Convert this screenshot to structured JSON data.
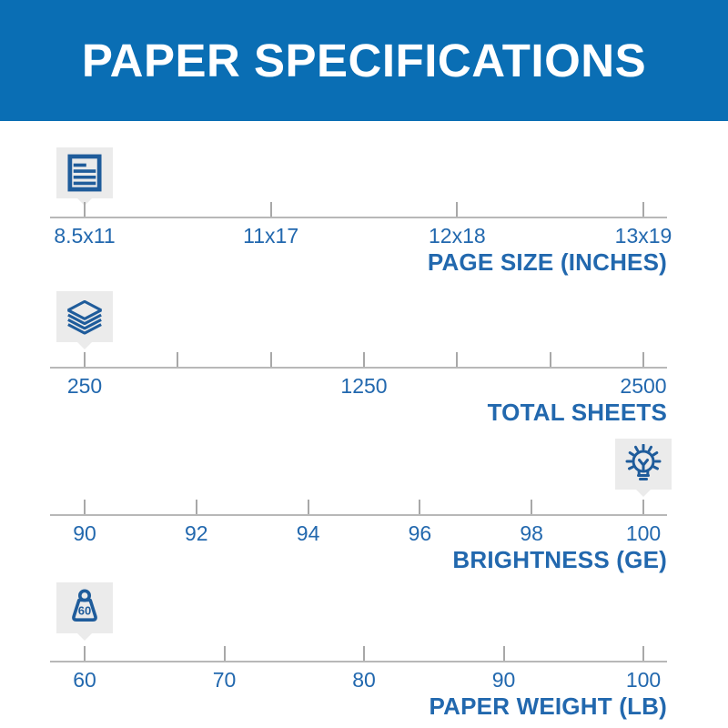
{
  "header": {
    "title": "PAPER SPECIFICATIONS"
  },
  "colors": {
    "banner_blue": "#0a6eb4",
    "text_blue": "#2268ae",
    "icon_blue": "#1f5c9b",
    "badge_gray": "#ebebeb",
    "axis_line_gray": "#b8b8b8",
    "tick_gray": "#a8a8a8",
    "background": "#ffffff"
  },
  "chart_data": {
    "type": "scale",
    "title": "PAPER SPECIFICATIONS",
    "description": "Four horizontal specification scales; a gray marker badge with an icon points to this paper's value on each scale",
    "scales": [
      {
        "title": "PAGE SIZE (INCHES)",
        "tick_labels": [
          "8.5x11",
          "11x17",
          "12x18",
          "13x19"
        ],
        "selected_index": 0,
        "selected_value": "8.5x11",
        "icon": "document-icon"
      },
      {
        "title": "TOTAL SHEETS",
        "tick_labels": [
          "250",
          "",
          "",
          "1250",
          "",
          "",
          "2500"
        ],
        "selected_index": 0,
        "selected_value": "250",
        "icon": "paper-stack-icon"
      },
      {
        "title": "BRIGHTNESS (GE)",
        "tick_labels": [
          "90",
          "92",
          "94",
          "96",
          "98",
          "100"
        ],
        "selected_index": 5,
        "selected_value": "100",
        "icon": "lightbulb-icon"
      },
      {
        "title": "PAPER WEIGHT (LB)",
        "tick_labels": [
          "60",
          "70",
          "80",
          "90",
          "100"
        ],
        "selected_index": 0,
        "selected_value": "60",
        "icon": "weight-icon",
        "icon_label": "60"
      }
    ]
  }
}
